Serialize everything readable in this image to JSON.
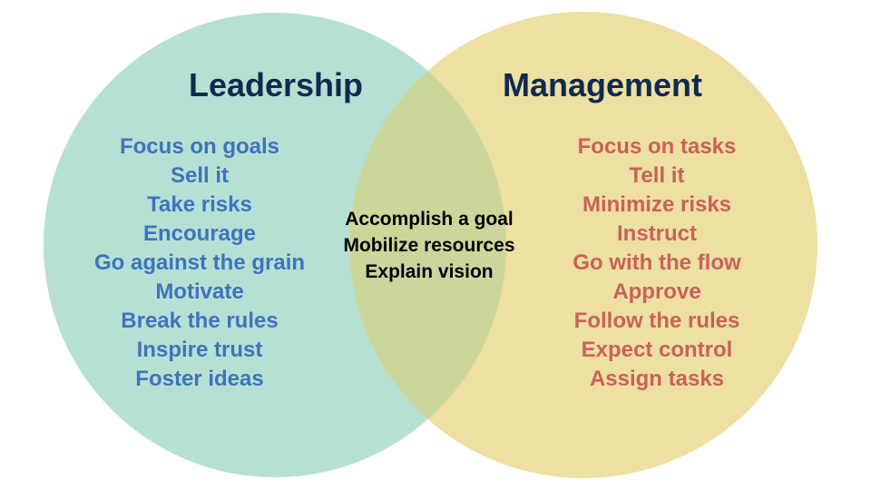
{
  "diagram": {
    "type": "venn",
    "left": {
      "title": "Leadership",
      "circle_color": "#b6e0d3",
      "text_color": "#3f73bf",
      "items": [
        "Focus on goals",
        "Sell it",
        "Take risks",
        "Encourage",
        "Go against the grain",
        "Motivate",
        "Break the rules",
        "Inspire trust",
        "Foster ideas"
      ]
    },
    "right": {
      "title": "Management",
      "circle_color": "#eedfa2",
      "text_color": "#c8625a",
      "items": [
        "Focus on tasks",
        "Tell it",
        "Minimize risks",
        "Instruct",
        "Go with the flow",
        "Approve",
        "Follow the rules",
        "Expect control",
        "Assign tasks"
      ]
    },
    "overlap": {
      "fill_color": "#cbd79a",
      "text_color": "#000000",
      "items": [
        "Accomplish a goal",
        "Mobilize resources",
        "Explain vision"
      ]
    },
    "title_color": "#0f2a4e"
  }
}
